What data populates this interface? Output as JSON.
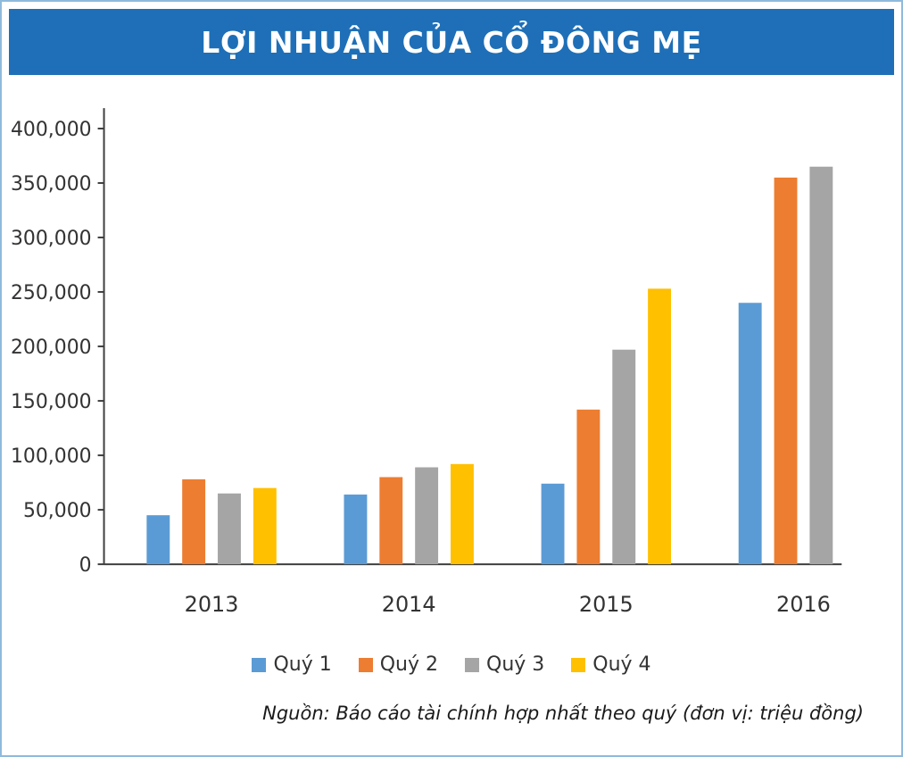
{
  "header": {
    "title": "LỢI NHUẬN CỦA CỔ ĐÔNG MẸ",
    "bg_color": "#1e6fb7"
  },
  "source_note": "Nguồn: Báo cáo tài chính hợp nhất theo quý (đơn vị: triệu đồng)",
  "chart_data": {
    "type": "bar",
    "title": "LỢI NHUẬN CỦA CỔ ĐÔNG MẸ",
    "unit": "triệu đồng",
    "categories": [
      "2013",
      "2014",
      "2015",
      "2016"
    ],
    "series": [
      {
        "name": "Quý 1",
        "color": "#5b9bd5",
        "values": [
          45000,
          64000,
          74000,
          240000
        ]
      },
      {
        "name": "Quý 2",
        "color": "#ed7d31",
        "values": [
          78000,
          80000,
          142000,
          355000
        ]
      },
      {
        "name": "Quý 3",
        "color": "#a5a5a5",
        "values": [
          65000,
          89000,
          197000,
          365000
        ]
      },
      {
        "name": "Quý 4",
        "color": "#ffc000",
        "values": [
          70000,
          92000,
          253000,
          null
        ]
      }
    ],
    "ylim": [
      0,
      400000
    ],
    "ytick_step": 50000,
    "ytick_labels": [
      "0",
      "50,000",
      "100,000",
      "150,000",
      "200,000",
      "250,000",
      "300,000",
      "350,000",
      "400,000"
    ],
    "grid": false,
    "legend_position": "bottom",
    "axis_color": "#3f3f3f"
  }
}
